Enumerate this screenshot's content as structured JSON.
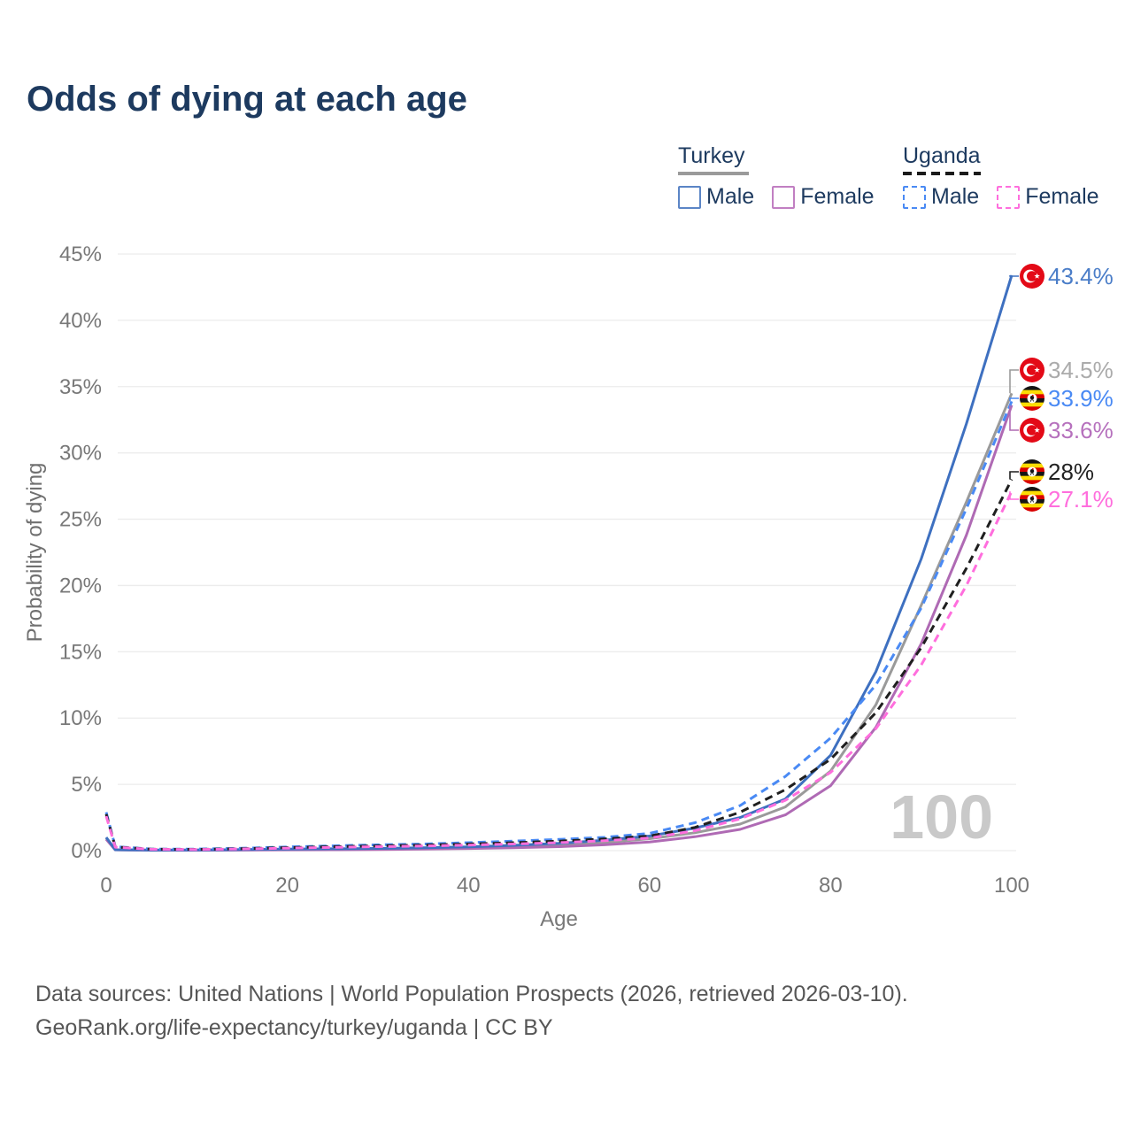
{
  "title": "Odds of dying at each age",
  "legend": {
    "groups": [
      {
        "name": "Turkey",
        "line_style": "solid",
        "underline_color": "#9a9a9a",
        "items": [
          {
            "label": "Male",
            "color": "#5b85c6"
          },
          {
            "label": "Female",
            "color": "#c17fc2"
          }
        ]
      },
      {
        "name": "Uganda",
        "line_style": "dashed",
        "underline_color": "#1a1a1a",
        "items": [
          {
            "label": "Male",
            "color": "#4a8af4"
          },
          {
            "label": "Female",
            "color": "#ff6edd"
          }
        ]
      }
    ]
  },
  "watermark_age": "100",
  "footer": {
    "line1": "Data sources: United Nations | World Population Prospects (2026, retrieved 2026-03-10).",
    "line2": "GeoRank.org/life-expectancy/turkey/uganda | CC BY"
  },
  "chart_data": {
    "type": "line",
    "title": "Odds of dying at each age",
    "xlabel": "Age",
    "ylabel": "Probability of dying",
    "xlim": [
      0,
      100
    ],
    "ylim": [
      0,
      45
    ],
    "grid": true,
    "x_ticks": [
      {
        "v": 0,
        "label": "0"
      },
      {
        "v": 20,
        "label": "20"
      },
      {
        "v": 40,
        "label": "40"
      },
      {
        "v": 60,
        "label": "60"
      },
      {
        "v": 80,
        "label": "80"
      },
      {
        "v": 100,
        "label": "100"
      }
    ],
    "y_ticks": [
      {
        "v": 0,
        "label": "0%"
      },
      {
        "v": 5,
        "label": "5%"
      },
      {
        "v": 10,
        "label": "10%"
      },
      {
        "v": 15,
        "label": "15%"
      },
      {
        "v": 20,
        "label": "20%"
      },
      {
        "v": 25,
        "label": "25%"
      },
      {
        "v": 30,
        "label": "30%"
      },
      {
        "v": 35,
        "label": "35%"
      },
      {
        "v": 40,
        "label": "40%"
      },
      {
        "v": 45,
        "label": "45%"
      }
    ],
    "ages": [
      0,
      1,
      5,
      10,
      15,
      20,
      25,
      30,
      35,
      40,
      45,
      50,
      55,
      60,
      65,
      70,
      75,
      80,
      85,
      90,
      95,
      100
    ],
    "series": [
      {
        "name": "Turkey Both sexes",
        "country": "Turkey",
        "flag": "turkey",
        "line": "solid",
        "color": "#9a9a9a",
        "label_color": "#ababab",
        "end_label": "34.5%",
        "values": [
          0.95,
          0.065,
          0.04,
          0.04,
          0.06,
          0.09,
          0.11,
          0.13,
          0.16,
          0.22,
          0.3,
          0.42,
          0.6,
          0.9,
          1.35,
          2.0,
          3.3,
          6.0,
          11.0,
          18.5,
          26.3,
          34.5
        ]
      },
      {
        "name": "Turkey Female",
        "country": "Turkey",
        "flag": "turkey",
        "line": "solid",
        "color": "#af6ab4",
        "label_color": "#b671bd",
        "end_label": "33.6%",
        "values": [
          0.85,
          0.06,
          0.03,
          0.03,
          0.04,
          0.06,
          0.07,
          0.09,
          0.12,
          0.16,
          0.22,
          0.3,
          0.44,
          0.65,
          1.05,
          1.6,
          2.7,
          4.9,
          9.3,
          15.6,
          23.8,
          33.6
        ]
      },
      {
        "name": "Turkey Male",
        "country": "Turkey",
        "flag": "turkey",
        "line": "solid",
        "color": "#3e70c0",
        "label_color": "#4a7dc8",
        "end_label": "43.4%",
        "values": [
          1.0,
          0.07,
          0.04,
          0.05,
          0.08,
          0.12,
          0.14,
          0.17,
          0.22,
          0.28,
          0.4,
          0.55,
          0.78,
          1.1,
          1.7,
          2.5,
          3.9,
          7.2,
          13.5,
          22.0,
          32.2,
          43.4
        ]
      },
      {
        "name": "Uganda Male",
        "country": "Uganda",
        "flag": "uganda",
        "line": "dashed",
        "color": "#4a8af4",
        "label_color": "#4a8af4",
        "end_label": "33.9%",
        "values": [
          2.9,
          0.3,
          0.12,
          0.12,
          0.18,
          0.28,
          0.36,
          0.44,
          0.5,
          0.6,
          0.72,
          0.85,
          1.0,
          1.3,
          2.1,
          3.4,
          5.6,
          8.5,
          12.5,
          18.3,
          25.8,
          33.9
        ]
      },
      {
        "name": "Uganda Both sexes",
        "country": "Uganda",
        "flag": "uganda",
        "line": "dashed",
        "color": "#1f1f1f",
        "label_color": "#222222",
        "end_label": "28%",
        "values": [
          2.75,
          0.28,
          0.11,
          0.1,
          0.15,
          0.23,
          0.3,
          0.36,
          0.42,
          0.5,
          0.6,
          0.72,
          0.88,
          1.1,
          1.75,
          2.9,
          4.6,
          6.9,
          10.4,
          15.3,
          21.3,
          28.0
        ]
      },
      {
        "name": "Uganda Female",
        "country": "Uganda",
        "flag": "uganda",
        "line": "dashed",
        "color": "#ff6edd",
        "label_color": "#ff6edd",
        "end_label": "27.1%",
        "values": [
          2.6,
          0.26,
          0.1,
          0.09,
          0.13,
          0.19,
          0.25,
          0.3,
          0.35,
          0.42,
          0.5,
          0.6,
          0.75,
          0.95,
          1.5,
          2.4,
          3.8,
          5.9,
          9.2,
          14.0,
          20.0,
          27.1
        ]
      }
    ]
  }
}
